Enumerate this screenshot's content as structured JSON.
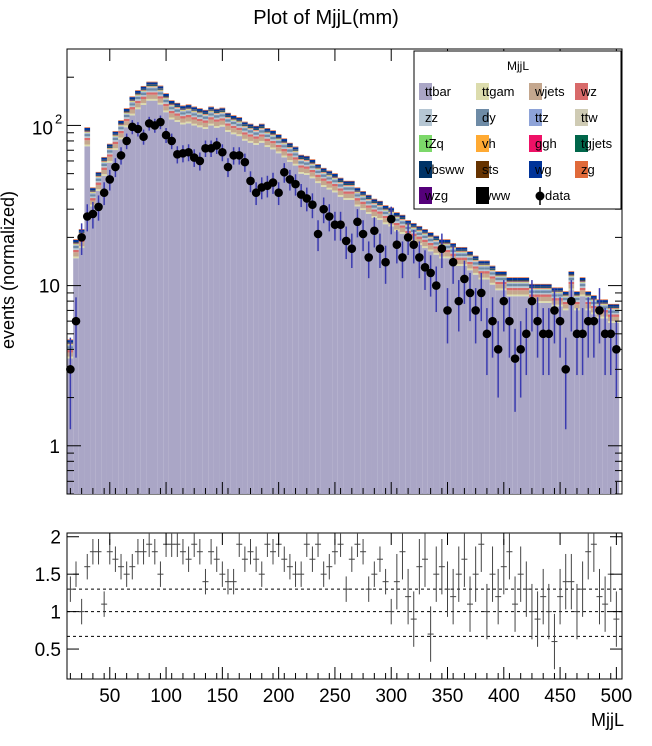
{
  "chart_data": [
    {
      "type": "bar",
      "title": "Plot of MjjL(mm)",
      "xlabel": "",
      "ylabel": "events (normalized)",
      "xlim": [
        12,
        505
      ],
      "ylim": [
        0.5,
        300
      ],
      "log_y": true,
      "y_ticks": [
        1,
        10,
        100
      ],
      "y_tick_labels": [
        "1",
        "10",
        "10",
        "2"
      ],
      "legend_title": "MjjL",
      "legend_position": "top-right",
      "stack_total": {
        "x": [
          15,
          20,
          25,
          30,
          35,
          40,
          45,
          50,
          55,
          60,
          65,
          70,
          75,
          80,
          85,
          90,
          95,
          100,
          105,
          110,
          115,
          120,
          125,
          130,
          135,
          140,
          145,
          150,
          155,
          160,
          165,
          170,
          175,
          180,
          185,
          190,
          195,
          200,
          205,
          210,
          215,
          220,
          225,
          230,
          235,
          240,
          245,
          250,
          255,
          260,
          265,
          270,
          275,
          280,
          285,
          290,
          295,
          300,
          305,
          310,
          315,
          320,
          325,
          330,
          335,
          340,
          345,
          350,
          355,
          360,
          365,
          370,
          375,
          380,
          385,
          390,
          395,
          400,
          405,
          410,
          415,
          420,
          425,
          430,
          435,
          440,
          445,
          450,
          455,
          460,
          465,
          470,
          475,
          480,
          485,
          490,
          495,
          500
        ],
        "y": [
          4.5,
          19,
          22,
          95,
          40,
          50,
          62,
          75,
          90,
          105,
          125,
          148,
          162,
          172,
          183,
          183,
          173,
          155,
          140,
          135,
          130,
          132,
          128,
          125,
          122,
          128,
          124,
          126,
          117,
          113,
          110,
          103,
          100,
          97,
          100,
          94,
          91,
          86,
          81,
          76,
          72,
          64,
          63,
          60,
          56,
          53,
          51,
          49,
          46,
          44,
          44,
          40,
          38,
          36,
          34,
          33,
          31,
          30,
          28,
          27,
          25,
          24,
          23,
          22,
          21,
          20,
          19,
          19,
          18,
          17,
          17,
          16,
          15,
          14,
          14,
          13,
          12,
          12,
          11,
          11,
          11,
          11,
          10,
          10,
          10,
          10,
          9.5,
          9.5,
          9,
          12,
          9,
          11,
          9,
          8.5,
          8,
          8,
          7.5,
          7.5
        ]
      },
      "series": [
        {
          "name": "ttbar",
          "color": "#aaa6c6"
        },
        {
          "name": "ttgam",
          "color": "#dcdcad"
        },
        {
          "name": "wjets",
          "color": "#c4a78e"
        },
        {
          "name": "wz",
          "color": "#d86a6a"
        },
        {
          "name": "zz",
          "color": "#b5c6d3"
        },
        {
          "name": "dy",
          "color": "#6e8ba6"
        },
        {
          "name": "ttz",
          "color": "#8ea3d8"
        },
        {
          "name": "ttw",
          "color": "#cfcbb4"
        },
        {
          "name": "tZq",
          "color": "#7cd86a"
        },
        {
          "name": "vh",
          "color": "#ffaa33"
        },
        {
          "name": "ggh",
          "color": "#ee1166"
        },
        {
          "name": "tgjets",
          "color": "#00664a"
        },
        {
          "name": "vbsww",
          "color": "#003366"
        },
        {
          "name": "sts",
          "color": "#663300"
        },
        {
          "name": "wg",
          "color": "#003399"
        },
        {
          "name": "zg",
          "color": "#e06a3a"
        },
        {
          "name": "wzg",
          "color": "#55007a"
        },
        {
          "name": "www",
          "color": "#000000"
        },
        {
          "name": "data",
          "color": "#000000"
        }
      ],
      "data": {
        "x": [
          15,
          20,
          25,
          30,
          35,
          40,
          45,
          50,
          55,
          60,
          65,
          70,
          75,
          80,
          85,
          90,
          95,
          100,
          105,
          110,
          115,
          120,
          125,
          130,
          135,
          140,
          145,
          150,
          155,
          160,
          165,
          170,
          175,
          180,
          185,
          190,
          195,
          200,
          205,
          210,
          215,
          220,
          225,
          230,
          235,
          240,
          245,
          250,
          255,
          260,
          265,
          270,
          275,
          280,
          285,
          290,
          295,
          300,
          305,
          310,
          315,
          320,
          325,
          330,
          335,
          340,
          345,
          350,
          355,
          360,
          365,
          370,
          375,
          380,
          385,
          390,
          395,
          400,
          405,
          410,
          415,
          420,
          425,
          430,
          435,
          440,
          445,
          450,
          455,
          460,
          465,
          470,
          475,
          480,
          485,
          490,
          495,
          500
        ],
        "y": [
          3,
          6,
          20,
          27,
          28,
          31,
          38,
          46,
          55,
          65,
          80,
          98,
          95,
          85,
          103,
          100,
          105,
          87,
          80,
          66,
          67,
          68,
          63,
          60,
          72,
          72,
          75,
          68,
          55,
          65,
          65,
          59,
          45,
          38,
          41,
          42,
          44,
          38,
          51,
          46,
          43,
          37,
          35,
          32,
          21,
          30,
          27,
          24,
          24,
          19,
          17,
          25,
          21,
          15,
          22,
          17,
          14,
          26,
          18,
          15,
          20,
          18,
          15,
          13,
          12,
          10,
          17,
          7,
          14,
          8,
          11,
          9,
          7,
          9,
          5,
          6,
          4,
          8,
          6,
          3.5,
          4,
          5,
          8,
          6,
          5,
          5,
          7,
          6,
          3,
          8,
          5,
          5,
          6,
          6,
          7,
          5,
          5,
          4
        ]
      },
      "ratio": {
        "ylabel": "",
        "ylim": [
          0.1,
          2.05
        ],
        "y_ticks": [
          0.5,
          1,
          1.5,
          2
        ],
        "y_tick_labels": [
          "0.5",
          "1",
          "1.5",
          "2"
        ],
        "reference_lines": [
          0.67,
          1.0,
          1.3
        ],
        "x": [
          15,
          20,
          25,
          30,
          35,
          40,
          45,
          50,
          55,
          60,
          65,
          70,
          75,
          80,
          85,
          90,
          95,
          100,
          105,
          110,
          115,
          120,
          125,
          130,
          135,
          140,
          145,
          150,
          155,
          160,
          165,
          170,
          175,
          180,
          185,
          190,
          195,
          200,
          205,
          210,
          215,
          220,
          225,
          230,
          235,
          240,
          245,
          250,
          255,
          260,
          265,
          270,
          275,
          280,
          285,
          290,
          295,
          300,
          305,
          310,
          315,
          320,
          325,
          330,
          335,
          340,
          345,
          350,
          355,
          360,
          365,
          370,
          375,
          380,
          385,
          390,
          395,
          400,
          405,
          410,
          415,
          420,
          425,
          430,
          435,
          440,
          445,
          450,
          455,
          460,
          465,
          470,
          475,
          480,
          485,
          490,
          495,
          500
        ],
        "y": [
          1.3,
          1.5,
          1.0,
          1.6,
          1.8,
          1.8,
          1.1,
          1.8,
          1.7,
          1.6,
          1.5,
          1.6,
          1.8,
          1.8,
          1.9,
          1.8,
          1.5,
          1.9,
          1.9,
          1.9,
          1.8,
          1.7,
          1.9,
          1.8,
          1.4,
          1.8,
          1.7,
          1.5,
          1.4,
          1.4,
          1.9,
          1.7,
          1.8,
          1.7,
          1.5,
          1.9,
          1.8,
          1.9,
          1.7,
          1.6,
          1.5,
          1.5,
          1.9,
          1.7,
          1.9,
          1.5,
          1.6,
          1.8,
          1.9,
          1.3,
          1.7,
          1.9,
          1.8,
          1.3,
          1.5,
          1.7,
          1.4,
          1.0,
          1.4,
          1.8,
          1.2,
          0.9,
          1.6,
          1.7,
          0.7,
          1.5,
          1.6,
          1.3,
          1.2,
          1.5,
          1.7,
          1.1,
          1.5,
          1.9,
          1.0,
          1.5,
          1.2,
          1.6,
          1.8,
          1.1,
          1.5,
          1.3,
          1.0,
          0.9,
          1.2,
          1.0,
          0.6,
          1.2,
          1.4,
          1.4,
          1.0,
          1.3,
          1.8,
          1.9,
          1.2,
          1.1,
          1.5,
          0.9
        ]
      },
      "x_ticks": [
        50,
        100,
        150,
        200,
        250,
        300,
        350,
        400,
        450,
        500
      ],
      "x_tick_labels": [
        "50",
        "100",
        "150",
        "200",
        "250",
        "300",
        "350",
        "400",
        "450",
        "500"
      ],
      "x_axis_label": "MjjL"
    }
  ]
}
